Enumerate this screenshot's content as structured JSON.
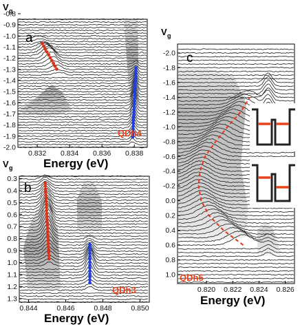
{
  "figure": {
    "vg_label": "V",
    "vg_sub": "g",
    "xlabel": "Energy (eV)"
  },
  "chart_data": [
    {
      "type": "line",
      "panel_label": "a",
      "dot_label": "QDh4",
      "xlabel": "Energy (eV)",
      "ylabel": "Vg",
      "xlim": [
        0.8308,
        0.8388
      ],
      "ylim": [
        -0.85,
        -2.0
      ],
      "x_ticks": [
        0.832,
        0.834,
        0.836,
        0.838
      ],
      "x_tick_labels": [
        "0.832",
        "0.834",
        "0.836",
        "0.838"
      ],
      "y_ticks": [
        -2.0,
        -1.9,
        -1.8,
        -1.7,
        -1.6,
        -1.5,
        -1.4,
        -1.3,
        -1.2,
        -1.1,
        -1.0,
        -0.9,
        -0.8
      ],
      "y_tick_labels": [
        "-2.0",
        "-1.9",
        "-1.8",
        "-1.7",
        "-1.6",
        "-1.5",
        "-1.4",
        "-1.3",
        "-1.2",
        "-1.1",
        "-1.0",
        "-0.9",
        "-0.8"
      ],
      "peaks": [
        {
          "color": "#d9331a",
          "vg_range": [
            -1.31,
            -1.08
          ],
          "energy_range": [
            0.8332,
            0.8323
          ],
          "width": 0.00045,
          "amplitude": 16
        },
        {
          "color": "#1f3fe0",
          "vg_range": [
            -1.92,
            -1.3
          ],
          "energy_range": [
            0.8379,
            0.8381
          ],
          "width": 0.00018,
          "amplitude": 18
        }
      ]
    },
    {
      "type": "line",
      "panel_label": "b",
      "dot_label": "QDh3",
      "xlabel": "Energy (eV)",
      "ylabel": "Vg",
      "xlim": [
        0.8435,
        0.8505
      ],
      "ylim": [
        0.28,
        1.33
      ],
      "x_ticks": [
        0.844,
        0.846,
        0.848,
        0.85
      ],
      "x_tick_labels": [
        "0.844",
        "0.846",
        "0.848",
        "0.850"
      ],
      "y_ticks": [
        1.3,
        1.2,
        1.1,
        1.0,
        0.9,
        0.8,
        0.7,
        0.6,
        0.5,
        0.4,
        0.3
      ],
      "y_tick_labels": [
        "1.3",
        "1.2",
        "1.1",
        "1.0",
        "0.9",
        "0.8",
        "0.7",
        "0.6",
        "0.5",
        "0.4",
        "0.3"
      ],
      "peaks": [
        {
          "color": "#d9331a",
          "vg_range": [
            0.98,
            0.35
          ],
          "energy_range": [
            0.8451,
            0.8449
          ],
          "width": 0.00032,
          "amplitude": 24
        },
        {
          "color": "#1f3fe0",
          "vg_range": [
            1.18,
            0.86
          ],
          "energy_range": [
            0.8473,
            0.8473
          ],
          "width": 0.00025,
          "amplitude": 22
        }
      ]
    },
    {
      "type": "line",
      "panel_label": "c",
      "dot_label": "QDh5",
      "xlabel": "Energy (eV)",
      "ylabel": "Vg",
      "xlim": [
        0.8178,
        0.8267
      ],
      "ylim": [
        -2.12,
        1.12
      ],
      "x_ticks": [
        0.82,
        0.822,
        0.824,
        0.826
      ],
      "x_tick_labels": [
        "0.820",
        "0.822",
        "0.824",
        "0.826"
      ],
      "y_ticks": [
        1.0,
        0.8,
        0.6,
        0.4,
        0.2,
        0.0,
        -0.2,
        -0.4,
        -0.6,
        -0.8,
        -1.0,
        -1.2,
        -1.4,
        -1.6,
        -1.8,
        -2.0
      ],
      "y_tick_labels": [
        "1.0",
        "0.8",
        "0.6",
        "0.4",
        "0.2",
        "0.0",
        "-0.2",
        "-0.4",
        "-0.6",
        "-0.8",
        "-1.0",
        "-1.2",
        "-1.4",
        "-1.6",
        "-1.8",
        "-2.0"
      ],
      "dashed_curve": {
        "color": "#e8331a",
        "vg": [
          0.6,
          0.4,
          0.2,
          0.0,
          -0.2,
          -0.4,
          -0.6,
          -0.8,
          -1.0,
          -1.2,
          -1.4
        ],
        "energy": [
          0.8228,
          0.8213,
          0.8202,
          0.8196,
          0.8194,
          0.8195,
          0.8199,
          0.8207,
          0.8216,
          0.8226,
          0.8233
        ]
      },
      "band_peak": {
        "width": 0.0011,
        "amplitude": 15
      },
      "side_peak": {
        "energy": 0.8247,
        "vg_range": [
          -1.18,
          -1.55
        ],
        "width": 0.0004,
        "amplitude": 14
      }
    }
  ]
}
